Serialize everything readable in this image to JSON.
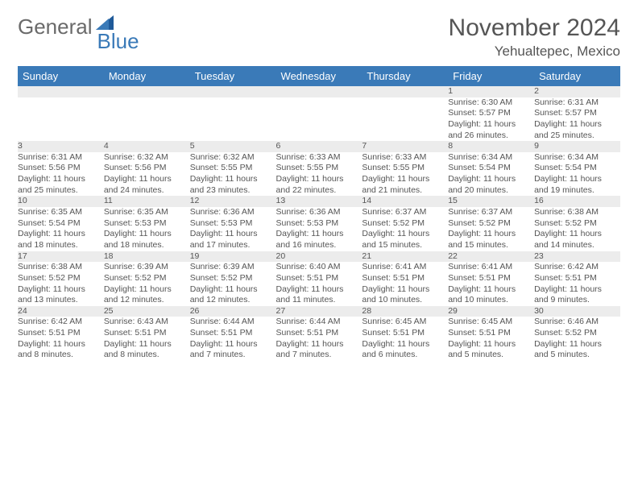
{
  "logo": {
    "text1": "General",
    "text2": "Blue"
  },
  "header": {
    "title": "November 2024",
    "location": "Yehualtepec, Mexico"
  },
  "colors": {
    "accent": "#3a7ab8",
    "row_bg": "#ececec",
    "text": "#555555",
    "bg": "#ffffff"
  },
  "days_of_week": [
    "Sunday",
    "Monday",
    "Tuesday",
    "Wednesday",
    "Thursday",
    "Friday",
    "Saturday"
  ],
  "weeks": [
    [
      null,
      null,
      null,
      null,
      null,
      {
        "n": "1",
        "sr": "Sunrise: 6:30 AM",
        "ss": "Sunset: 5:57 PM",
        "d1": "Daylight: 11 hours",
        "d2": "and 26 minutes."
      },
      {
        "n": "2",
        "sr": "Sunrise: 6:31 AM",
        "ss": "Sunset: 5:57 PM",
        "d1": "Daylight: 11 hours",
        "d2": "and 25 minutes."
      }
    ],
    [
      {
        "n": "3",
        "sr": "Sunrise: 6:31 AM",
        "ss": "Sunset: 5:56 PM",
        "d1": "Daylight: 11 hours",
        "d2": "and 25 minutes."
      },
      {
        "n": "4",
        "sr": "Sunrise: 6:32 AM",
        "ss": "Sunset: 5:56 PM",
        "d1": "Daylight: 11 hours",
        "d2": "and 24 minutes."
      },
      {
        "n": "5",
        "sr": "Sunrise: 6:32 AM",
        "ss": "Sunset: 5:55 PM",
        "d1": "Daylight: 11 hours",
        "d2": "and 23 minutes."
      },
      {
        "n": "6",
        "sr": "Sunrise: 6:33 AM",
        "ss": "Sunset: 5:55 PM",
        "d1": "Daylight: 11 hours",
        "d2": "and 22 minutes."
      },
      {
        "n": "7",
        "sr": "Sunrise: 6:33 AM",
        "ss": "Sunset: 5:55 PM",
        "d1": "Daylight: 11 hours",
        "d2": "and 21 minutes."
      },
      {
        "n": "8",
        "sr": "Sunrise: 6:34 AM",
        "ss": "Sunset: 5:54 PM",
        "d1": "Daylight: 11 hours",
        "d2": "and 20 minutes."
      },
      {
        "n": "9",
        "sr": "Sunrise: 6:34 AM",
        "ss": "Sunset: 5:54 PM",
        "d1": "Daylight: 11 hours",
        "d2": "and 19 minutes."
      }
    ],
    [
      {
        "n": "10",
        "sr": "Sunrise: 6:35 AM",
        "ss": "Sunset: 5:54 PM",
        "d1": "Daylight: 11 hours",
        "d2": "and 18 minutes."
      },
      {
        "n": "11",
        "sr": "Sunrise: 6:35 AM",
        "ss": "Sunset: 5:53 PM",
        "d1": "Daylight: 11 hours",
        "d2": "and 18 minutes."
      },
      {
        "n": "12",
        "sr": "Sunrise: 6:36 AM",
        "ss": "Sunset: 5:53 PM",
        "d1": "Daylight: 11 hours",
        "d2": "and 17 minutes."
      },
      {
        "n": "13",
        "sr": "Sunrise: 6:36 AM",
        "ss": "Sunset: 5:53 PM",
        "d1": "Daylight: 11 hours",
        "d2": "and 16 minutes."
      },
      {
        "n": "14",
        "sr": "Sunrise: 6:37 AM",
        "ss": "Sunset: 5:52 PM",
        "d1": "Daylight: 11 hours",
        "d2": "and 15 minutes."
      },
      {
        "n": "15",
        "sr": "Sunrise: 6:37 AM",
        "ss": "Sunset: 5:52 PM",
        "d1": "Daylight: 11 hours",
        "d2": "and 15 minutes."
      },
      {
        "n": "16",
        "sr": "Sunrise: 6:38 AM",
        "ss": "Sunset: 5:52 PM",
        "d1": "Daylight: 11 hours",
        "d2": "and 14 minutes."
      }
    ],
    [
      {
        "n": "17",
        "sr": "Sunrise: 6:38 AM",
        "ss": "Sunset: 5:52 PM",
        "d1": "Daylight: 11 hours",
        "d2": "and 13 minutes."
      },
      {
        "n": "18",
        "sr": "Sunrise: 6:39 AM",
        "ss": "Sunset: 5:52 PM",
        "d1": "Daylight: 11 hours",
        "d2": "and 12 minutes."
      },
      {
        "n": "19",
        "sr": "Sunrise: 6:39 AM",
        "ss": "Sunset: 5:52 PM",
        "d1": "Daylight: 11 hours",
        "d2": "and 12 minutes."
      },
      {
        "n": "20",
        "sr": "Sunrise: 6:40 AM",
        "ss": "Sunset: 5:51 PM",
        "d1": "Daylight: 11 hours",
        "d2": "and 11 minutes."
      },
      {
        "n": "21",
        "sr": "Sunrise: 6:41 AM",
        "ss": "Sunset: 5:51 PM",
        "d1": "Daylight: 11 hours",
        "d2": "and 10 minutes."
      },
      {
        "n": "22",
        "sr": "Sunrise: 6:41 AM",
        "ss": "Sunset: 5:51 PM",
        "d1": "Daylight: 11 hours",
        "d2": "and 10 minutes."
      },
      {
        "n": "23",
        "sr": "Sunrise: 6:42 AM",
        "ss": "Sunset: 5:51 PM",
        "d1": "Daylight: 11 hours",
        "d2": "and 9 minutes."
      }
    ],
    [
      {
        "n": "24",
        "sr": "Sunrise: 6:42 AM",
        "ss": "Sunset: 5:51 PM",
        "d1": "Daylight: 11 hours",
        "d2": "and 8 minutes."
      },
      {
        "n": "25",
        "sr": "Sunrise: 6:43 AM",
        "ss": "Sunset: 5:51 PM",
        "d1": "Daylight: 11 hours",
        "d2": "and 8 minutes."
      },
      {
        "n": "26",
        "sr": "Sunrise: 6:44 AM",
        "ss": "Sunset: 5:51 PM",
        "d1": "Daylight: 11 hours",
        "d2": "and 7 minutes."
      },
      {
        "n": "27",
        "sr": "Sunrise: 6:44 AM",
        "ss": "Sunset: 5:51 PM",
        "d1": "Daylight: 11 hours",
        "d2": "and 7 minutes."
      },
      {
        "n": "28",
        "sr": "Sunrise: 6:45 AM",
        "ss": "Sunset: 5:51 PM",
        "d1": "Daylight: 11 hours",
        "d2": "and 6 minutes."
      },
      {
        "n": "29",
        "sr": "Sunrise: 6:45 AM",
        "ss": "Sunset: 5:51 PM",
        "d1": "Daylight: 11 hours",
        "d2": "and 5 minutes."
      },
      {
        "n": "30",
        "sr": "Sunrise: 6:46 AM",
        "ss": "Sunset: 5:52 PM",
        "d1": "Daylight: 11 hours",
        "d2": "and 5 minutes."
      }
    ]
  ]
}
